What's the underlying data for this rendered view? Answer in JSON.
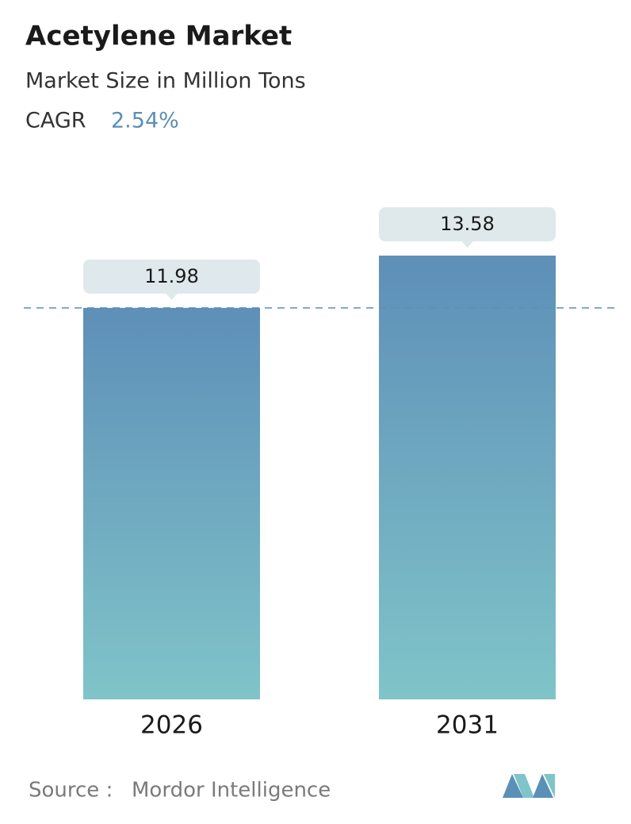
{
  "chart_data": {
    "type": "bar",
    "title": "Acetylene Market",
    "subtitle": "Market Size in Million Tons",
    "cagr_label": "CAGR",
    "cagr": "2.54%",
    "categories": [
      "2026",
      "2031"
    ],
    "values": [
      11.98,
      13.58
    ],
    "source_label": "Source :",
    "source": "Mordor Intelligence"
  }
}
